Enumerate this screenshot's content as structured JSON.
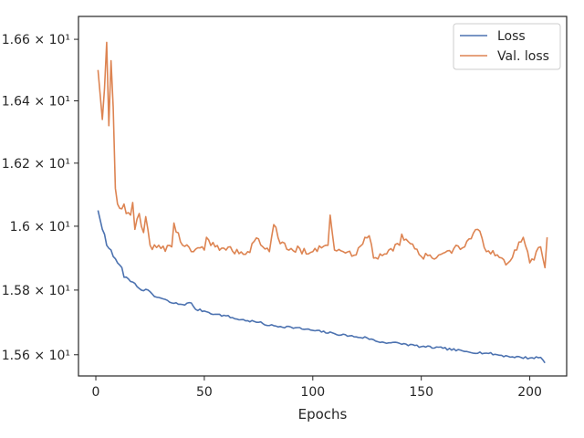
{
  "chart_data": {
    "type": "line",
    "title": "",
    "xlabel": "Epochs",
    "ylabel": "",
    "yscale": "log",
    "grid": false,
    "legend_position": "top-right",
    "xlim": [
      -8,
      217
    ],
    "ylim": [
      15.535,
      16.675
    ],
    "x_ticks": [
      0,
      50,
      100,
      150,
      200
    ],
    "x_tick_labels": [
      "0",
      "50",
      "100",
      "150",
      "200"
    ],
    "y_ticks": [
      15.6,
      15.8,
      16.0,
      16.2,
      16.4,
      16.6
    ],
    "y_tick_labels": [
      "1.56 × 10¹",
      "1.58 × 10¹",
      "1.6 × 10¹",
      "1.62 × 10¹",
      "1.64 × 10¹",
      "1.66 × 10¹"
    ],
    "series": [
      {
        "name": "Loss",
        "color": "#4c72b0",
        "anchors": [
          [
            1,
            16.05
          ],
          [
            2,
            16.02
          ],
          [
            3,
            15.99
          ],
          [
            4,
            15.975
          ],
          [
            5,
            15.94
          ],
          [
            7,
            15.925
          ],
          [
            8,
            15.905
          ],
          [
            10,
            15.885
          ],
          [
            12,
            15.87
          ],
          [
            13,
            15.84
          ],
          [
            15,
            15.835
          ],
          [
            17,
            15.825
          ],
          [
            20,
            15.805
          ],
          [
            25,
            15.795
          ],
          [
            27,
            15.78
          ],
          [
            30,
            15.775
          ],
          [
            35,
            15.76
          ],
          [
            40,
            15.755
          ],
          [
            44,
            15.76
          ],
          [
            46,
            15.74
          ],
          [
            50,
            15.735
          ],
          [
            55,
            15.725
          ],
          [
            60,
            15.72
          ],
          [
            65,
            15.71
          ],
          [
            70,
            15.705
          ],
          [
            75,
            15.7
          ],
          [
            80,
            15.69
          ],
          [
            90,
            15.685
          ],
          [
            100,
            15.675
          ],
          [
            110,
            15.665
          ],
          [
            120,
            15.655
          ],
          [
            125,
            15.652
          ],
          [
            130,
            15.64
          ],
          [
            140,
            15.635
          ],
          [
            150,
            15.625
          ],
          [
            160,
            15.62
          ],
          [
            170,
            15.61
          ],
          [
            180,
            15.605
          ],
          [
            190,
            15.595
          ],
          [
            200,
            15.59
          ],
          [
            205,
            15.592
          ],
          [
            207,
            15.575
          ]
        ],
        "noise": 0.0035
      },
      {
        "name": "Val. loss",
        "color": "#dd8452",
        "anchors": [
          [
            1,
            16.5
          ],
          [
            2,
            16.42
          ],
          [
            3,
            16.34
          ],
          [
            4,
            16.44
          ],
          [
            5,
            16.59
          ],
          [
            6,
            16.32
          ],
          [
            7,
            16.53
          ],
          [
            8,
            16.38
          ],
          [
            9,
            16.12
          ],
          [
            10,
            16.07
          ],
          [
            12,
            16.055
          ],
          [
            13,
            16.07
          ],
          [
            14,
            16.04
          ],
          [
            16,
            16.035
          ],
          [
            17,
            16.075
          ],
          [
            18,
            15.99
          ],
          [
            20,
            16.04
          ],
          [
            22,
            15.98
          ],
          [
            23,
            16.03
          ],
          [
            25,
            15.94
          ],
          [
            30,
            15.93
          ],
          [
            35,
            15.935
          ],
          [
            36,
            16.01
          ],
          [
            40,
            15.94
          ],
          [
            45,
            15.92
          ],
          [
            50,
            15.925
          ],
          [
            51,
            15.965
          ],
          [
            55,
            15.935
          ],
          [
            60,
            15.925
          ],
          [
            70,
            15.92
          ],
          [
            75,
            15.96
          ],
          [
            80,
            15.92
          ],
          [
            82,
            16.005
          ],
          [
            85,
            15.945
          ],
          [
            90,
            15.93
          ],
          [
            100,
            15.92
          ],
          [
            107,
            15.94
          ],
          [
            108,
            16.035
          ],
          [
            110,
            15.925
          ],
          [
            120,
            15.91
          ],
          [
            124,
            15.965
          ],
          [
            126,
            15.97
          ],
          [
            128,
            15.9
          ],
          [
            135,
            15.925
          ],
          [
            140,
            15.94
          ],
          [
            141,
            15.975
          ],
          [
            145,
            15.945
          ],
          [
            150,
            15.905
          ],
          [
            155,
            15.9
          ],
          [
            160,
            15.915
          ],
          [
            165,
            15.93
          ],
          [
            170,
            15.935
          ],
          [
            172,
            15.96
          ],
          [
            176,
            15.99
          ],
          [
            180,
            15.92
          ],
          [
            185,
            15.91
          ],
          [
            188,
            15.895
          ],
          [
            190,
            15.885
          ],
          [
            195,
            15.95
          ],
          [
            197,
            15.965
          ],
          [
            200,
            15.885
          ],
          [
            205,
            15.935
          ],
          [
            207,
            15.87
          ],
          [
            208,
            15.965
          ]
        ],
        "noise": 0.012
      }
    ]
  }
}
